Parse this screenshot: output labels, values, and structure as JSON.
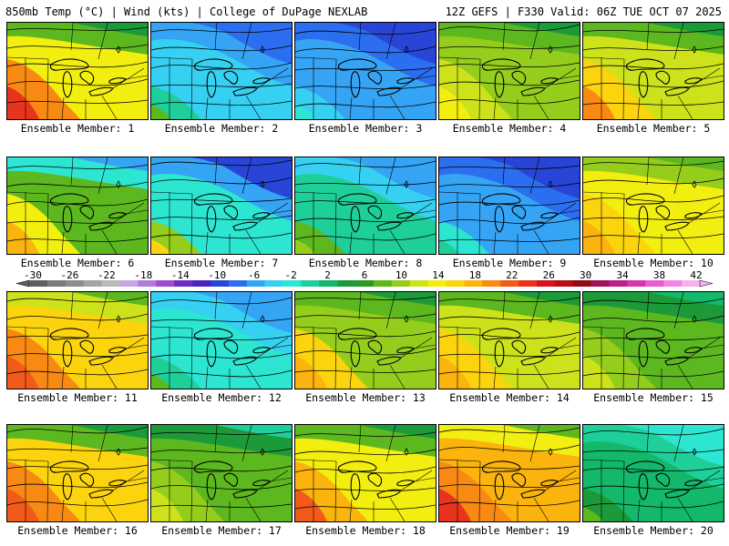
{
  "header": {
    "left_title": "850mb Temp (°C) | Wind (kts) | College of DuPage NEXLAB",
    "right_title": "12Z GEFS | F330 Valid: 06Z TUE OCT 07 2025"
  },
  "colorbar": {
    "ticks": [
      "-30",
      "-26",
      "-22",
      "-18",
      "-14",
      "-10",
      "-6",
      "-2",
      "2",
      "6",
      "10",
      "14",
      "18",
      "22",
      "26",
      "30",
      "34",
      "38",
      "42"
    ],
    "colors": [
      "#5e5e5e",
      "#7a7a7a",
      "#8d8d8d",
      "#a4a4a4",
      "#b9b9b9",
      "#c7a6e0",
      "#b07ad8",
      "#a24bd0",
      "#6d2bc9",
      "#4c22c4",
      "#2845d8",
      "#2c6ef0",
      "#35a4f5",
      "#36d1f2",
      "#2de6d1",
      "#1fcf9a",
      "#13b86a",
      "#1c9a3a",
      "#2a9a22",
      "#5cb81e",
      "#95cd1c",
      "#cde21a",
      "#f2ee10",
      "#fbd40e",
      "#fbb30d",
      "#f88a14",
      "#f25a19",
      "#e8341c",
      "#d5141d",
      "#b50f18",
      "#8f0c14",
      "#a0145a",
      "#c01c8a",
      "#d933b0",
      "#ea5ccd",
      "#f286e0",
      "#f7b1ec"
    ]
  },
  "members": [
    {
      "label": "Ensemble Member: 1"
    },
    {
      "label": "Ensemble Member: 2"
    },
    {
      "label": "Ensemble Member: 3"
    },
    {
      "label": "Ensemble Member: 4"
    },
    {
      "label": "Ensemble Member: 5"
    },
    {
      "label": "Ensemble Member: 6"
    },
    {
      "label": "Ensemble Member: 7"
    },
    {
      "label": "Ensemble Member: 8"
    },
    {
      "label": "Ensemble Member: 9"
    },
    {
      "label": "Ensemble Member: 10"
    },
    {
      "label": "Ensemble Member: 11"
    },
    {
      "label": "Ensemble Member: 12"
    },
    {
      "label": "Ensemble Member: 13"
    },
    {
      "label": "Ensemble Member: 14"
    },
    {
      "label": "Ensemble Member: 15"
    },
    {
      "label": "Ensemble Member: 16"
    },
    {
      "label": "Ensemble Member: 17"
    },
    {
      "label": "Ensemble Member: 18"
    },
    {
      "label": "Ensemble Member: 19"
    },
    {
      "label": "Ensemble Member: 20"
    }
  ]
}
